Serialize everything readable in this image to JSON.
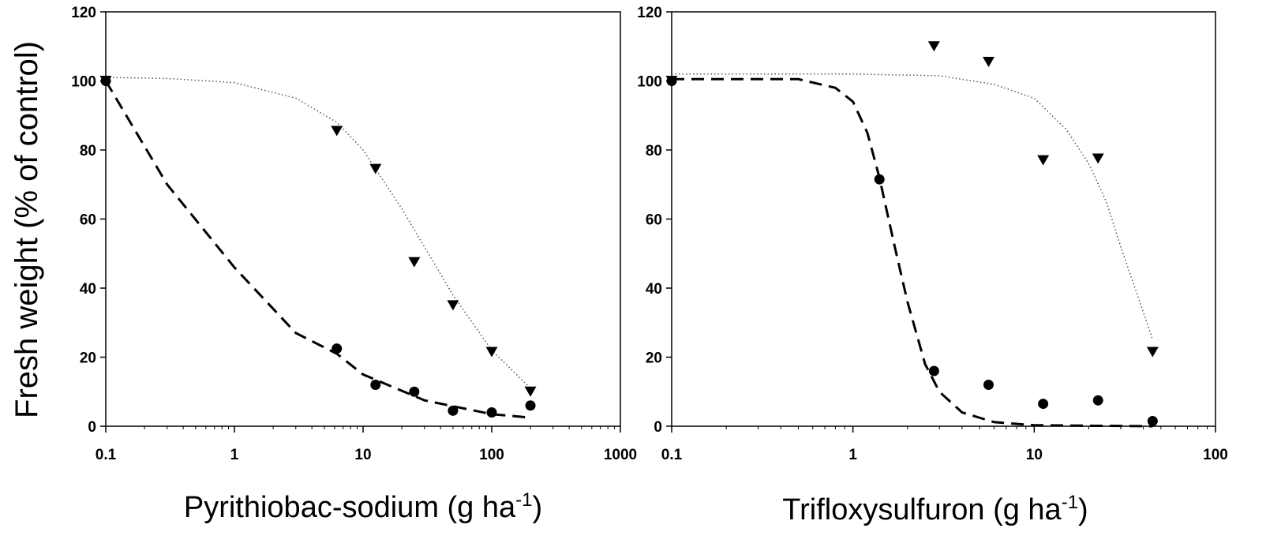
{
  "ylabel": "Fresh weight  (% of control)",
  "chart_data": [
    {
      "type": "scatter",
      "xscale": "log",
      "xlim": [
        0.1,
        1000
      ],
      "ylim": [
        0,
        120
      ],
      "xticks": [
        0.1,
        1,
        10,
        100,
        1000
      ],
      "xtick_labels": [
        "0.1",
        "1",
        "10",
        "100",
        "1000"
      ],
      "yticks": [
        0,
        20,
        40,
        60,
        80,
        100,
        120
      ],
      "ytick_labels": [
        "0",
        "20",
        "40",
        "60",
        "80",
        "100",
        "120"
      ],
      "xlabel": {
        "main": "Pyrithiobac-sodium (g ha",
        "sup": "-1",
        "tail": ")"
      },
      "ylabel": "Fresh weight  (% of control)",
      "grid": false,
      "legend": "none",
      "series": [
        {
          "marker": "circle",
          "fit_line": "dashed",
          "points": [
            [
              0.1,
              100
            ],
            [
              6.25,
              22.5
            ],
            [
              12.5,
              12
            ],
            [
              25,
              10
            ],
            [
              50,
              4.5
            ],
            [
              100,
              4
            ],
            [
              200,
              6
            ]
          ],
          "fit_curve": [
            [
              0.1,
              100
            ],
            [
              0.3,
              70
            ],
            [
              1,
              46
            ],
            [
              3,
              27
            ],
            [
              6.25,
              21
            ],
            [
              10,
              15
            ],
            [
              30,
              7.5
            ],
            [
              100,
              3.5
            ],
            [
              200,
              2.5
            ]
          ]
        },
        {
          "marker": "triangle-down",
          "fit_line": "dotted",
          "points": [
            [
              0.1,
              100
            ],
            [
              6.25,
              85.5
            ],
            [
              12.5,
              74.5
            ],
            [
              25,
              47.5
            ],
            [
              50,
              35
            ],
            [
              100,
              21.5
            ],
            [
              200,
              10
            ]
          ],
          "fit_curve": [
            [
              0.1,
              101
            ],
            [
              0.3,
              100.7
            ],
            [
              1,
              99.5
            ],
            [
              3,
              95
            ],
            [
              6.25,
              88
            ],
            [
              10,
              80
            ],
            [
              20,
              63
            ],
            [
              50,
              38
            ],
            [
              100,
              22
            ],
            [
              200,
              11
            ]
          ]
        }
      ]
    },
    {
      "type": "scatter",
      "xscale": "log",
      "xlim": [
        0.1,
        100
      ],
      "ylim": [
        0,
        120
      ],
      "xticks": [
        0.1,
        1,
        10,
        100
      ],
      "xtick_labels": [
        "0.1",
        "1",
        "10",
        "100"
      ],
      "yticks": [
        0,
        20,
        40,
        60,
        80,
        100,
        120
      ],
      "ytick_labels": [
        "0",
        "20",
        "40",
        "60",
        "80",
        "100",
        "120"
      ],
      "xlabel": {
        "main": "Trifloxysulfuron (g ha",
        "sup": "-1",
        "tail": ")"
      },
      "ylabel": "",
      "grid": false,
      "legend": "none",
      "series": [
        {
          "marker": "circle",
          "fit_line": "dashed",
          "points": [
            [
              0.1,
              100
            ],
            [
              1.4,
              71.5
            ],
            [
              2.8,
              16
            ],
            [
              5.6,
              12
            ],
            [
              11.2,
              6.5
            ],
            [
              22.5,
              7.5
            ],
            [
              45,
              1.5
            ]
          ],
          "fit_curve": [
            [
              0.1,
              100.5
            ],
            [
              0.5,
              100.5
            ],
            [
              0.8,
              98
            ],
            [
              1,
              94
            ],
            [
              1.2,
              85
            ],
            [
              1.4,
              72
            ],
            [
              1.7,
              52
            ],
            [
              2,
              36
            ],
            [
              2.5,
              18
            ],
            [
              3,
              10
            ],
            [
              4,
              4
            ],
            [
              6,
              1.2
            ],
            [
              10,
              0.3
            ],
            [
              45,
              0
            ]
          ]
        },
        {
          "marker": "triangle-down",
          "fit_line": "dotted",
          "points": [
            [
              0.1,
              100
            ],
            [
              2.8,
              110
            ],
            [
              5.6,
              105.5
            ],
            [
              11.2,
              77
            ],
            [
              22.5,
              77.5
            ],
            [
              45,
              21.5
            ]
          ],
          "fit_curve": [
            [
              0.1,
              102
            ],
            [
              1,
              102
            ],
            [
              3,
              101.5
            ],
            [
              6,
              99
            ],
            [
              10,
              95
            ],
            [
              15,
              86
            ],
            [
              20,
              76
            ],
            [
              25,
              65
            ],
            [
              30,
              52
            ],
            [
              40,
              33
            ],
            [
              45,
              25
            ]
          ]
        }
      ]
    }
  ]
}
